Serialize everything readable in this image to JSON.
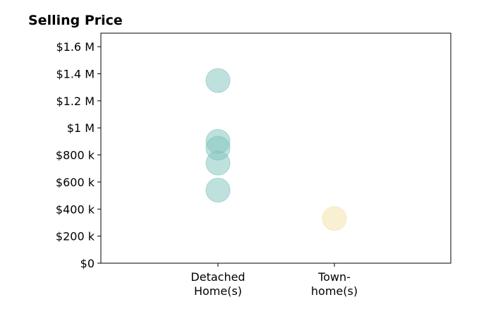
{
  "chart_data": {
    "type": "scatter",
    "title": "Selling Price",
    "xlabel": "",
    "ylabel": "",
    "categories": [
      [
        "Detached",
        "Home(s)"
      ],
      [
        "Town-",
        "home(s)"
      ]
    ],
    "ylim": [
      0,
      1700000
    ],
    "yticks": [
      {
        "value": 0,
        "label": "$0"
      },
      {
        "value": 200000,
        "label": "$200 k"
      },
      {
        "value": 400000,
        "label": "$400 k"
      },
      {
        "value": 600000,
        "label": "$600 k"
      },
      {
        "value": 800000,
        "label": "$800 k"
      },
      {
        "value": 1000000,
        "label": "$1 M"
      },
      {
        "value": 1200000,
        "label": "$1.2 M"
      },
      {
        "value": 1400000,
        "label": "$1.4 M"
      },
      {
        "value": 1600000,
        "label": "$1.6 M"
      }
    ],
    "series": [
      {
        "category_index": 0,
        "color": "#7fc4bb",
        "values": [
          1350000,
          900000,
          850000,
          740000,
          540000
        ]
      },
      {
        "category_index": 1,
        "color": "#f4dfa6",
        "values": [
          330000
        ]
      }
    ],
    "grid": false,
    "legend": "none"
  }
}
